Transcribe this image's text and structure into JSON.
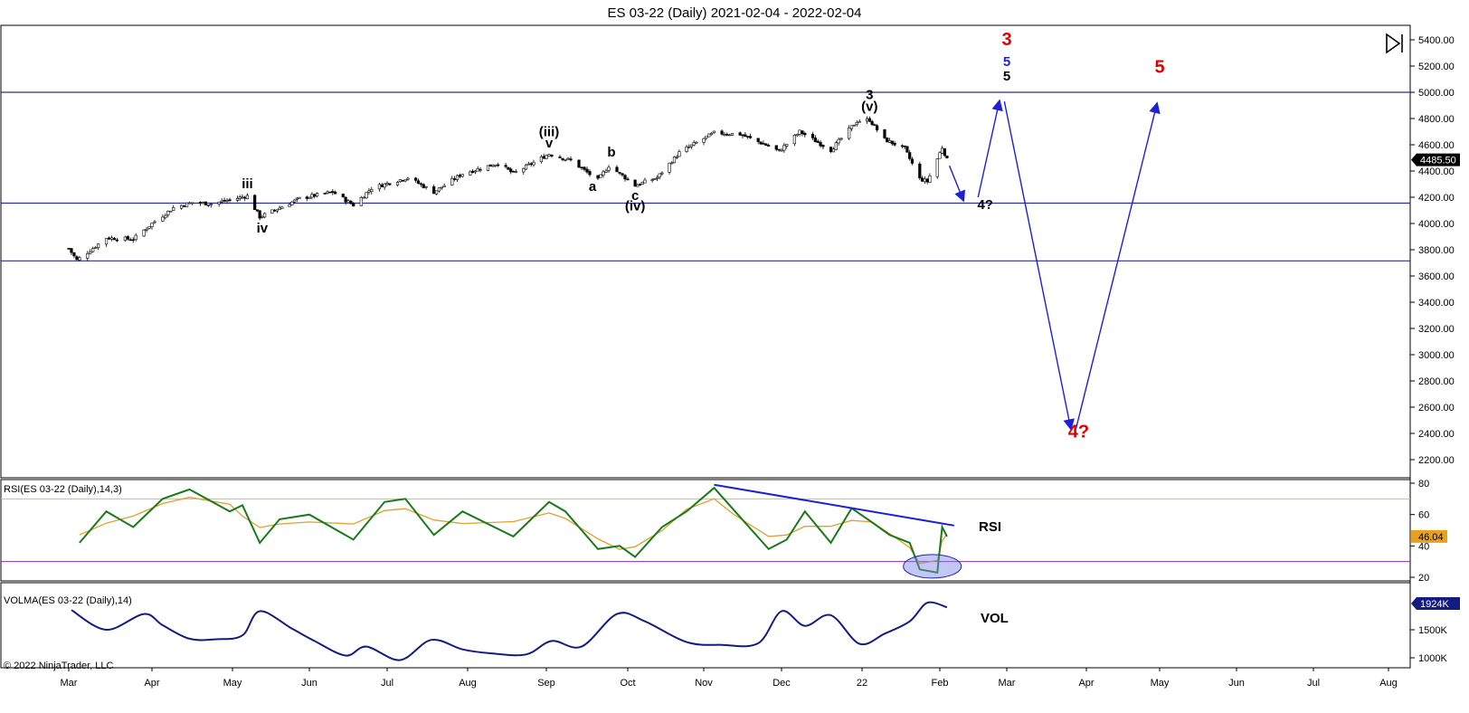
{
  "window": {
    "title": "ES 03-22 (Daily)  2021-02-04 - 2022-02-04"
  },
  "copyright": "© 2022 NinjaTrader, LLC",
  "chart_data": [
    {
      "type": "candlestick",
      "panel": "price",
      "y_ticks": [
        "5400.00",
        "5200.00",
        "5000.00",
        "4800.00",
        "4600.00",
        "4400.00",
        "4200.00",
        "4000.00",
        "3800.00",
        "3600.00",
        "3400.00",
        "3200.00",
        "3000.00",
        "2800.00",
        "2600.00",
        "2400.00",
        "2200.00"
      ],
      "ylim": [
        2100,
        5470
      ],
      "last_price": "4485.50",
      "x_month_labels": [
        "Mar",
        "Apr",
        "May",
        "Jun",
        "Jul",
        "Aug",
        "Sep",
        "Oct",
        "Nov",
        "Dec",
        "22",
        "Feb",
        "Mar",
        "Apr",
        "May",
        "Jun",
        "Jul",
        "Aug"
      ],
      "close_path": [
        [
          "2021-03-01",
          3810
        ],
        [
          "2021-03-04",
          3720
        ],
        [
          "2021-03-08",
          3780
        ],
        [
          "2021-03-15",
          3890
        ],
        [
          "2021-03-25",
          3880
        ],
        [
          "2021-04-01",
          4000
        ],
        [
          "2021-04-09",
          4120
        ],
        [
          "2021-04-16",
          4160
        ],
        [
          "2021-04-23",
          4150
        ],
        [
          "2021-05-07",
          4210
        ],
        [
          "2021-05-12",
          4050
        ],
        [
          "2021-05-19",
          4110
        ],
        [
          "2021-05-28",
          4190
        ],
        [
          "2021-06-10",
          4240
        ],
        [
          "2021-06-18",
          4140
        ],
        [
          "2021-06-25",
          4270
        ],
        [
          "2021-07-09",
          4350
        ],
        [
          "2021-07-19",
          4240
        ],
        [
          "2021-07-30",
          4380
        ],
        [
          "2021-08-13",
          4460
        ],
        [
          "2021-08-19",
          4380
        ],
        [
          "2021-09-02",
          4530
        ],
        [
          "2021-09-10",
          4480
        ],
        [
          "2021-09-20",
          4330
        ],
        [
          "2021-09-24",
          4440
        ],
        [
          "2021-10-04",
          4290
        ],
        [
          "2021-10-13",
          4350
        ],
        [
          "2021-10-22",
          4540
        ],
        [
          "2021-11-05",
          4690
        ],
        [
          "2021-11-15",
          4680
        ],
        [
          "2021-11-26",
          4590
        ],
        [
          "2021-11-30",
          4550
        ],
        [
          "2021-12-08",
          4700
        ],
        [
          "2021-12-20",
          4560
        ],
        [
          "2021-12-30",
          4780
        ],
        [
          "2022-01-04",
          4790
        ],
        [
          "2022-01-10",
          4640
        ],
        [
          "2022-01-18",
          4570
        ],
        [
          "2022-01-24",
          4340
        ],
        [
          "2022-01-27",
          4320
        ],
        [
          "2022-02-02",
          4580
        ],
        [
          "2022-02-04",
          4485
        ]
      ],
      "horizontal_lines": [
        5000,
        4155,
        3715
      ],
      "wave_labels": [
        {
          "text": "iii",
          "x": "2021-05-07",
          "y": 4270,
          "color": "#000000"
        },
        {
          "text": "iv",
          "x": "2021-05-13",
          "y": 3930,
          "color": "#000000"
        },
        {
          "text": "(iii)",
          "x": "2021-09-02",
          "y": 4665,
          "color": "#000000"
        },
        {
          "text": "v",
          "x": "2021-09-02",
          "y": 4580,
          "color": "#000000"
        },
        {
          "text": "a",
          "x": "2021-09-18",
          "y": 4250,
          "color": "#000000"
        },
        {
          "text": "b",
          "x": "2021-09-25",
          "y": 4510,
          "color": "#000000"
        },
        {
          "text": "c",
          "x": "2021-10-04",
          "y": 4180,
          "color": "#000000"
        },
        {
          "text": "(iv)",
          "x": "2021-10-04",
          "y": 4100,
          "color": "#000000"
        },
        {
          "text": "3",
          "x": "2022-01-04",
          "y": 4950,
          "color": "#000000"
        },
        {
          "text": "(v)",
          "x": "2022-01-04",
          "y": 4860,
          "color": "#000000"
        },
        {
          "text": "4?",
          "x": "2022-02-20",
          "y": 4110,
          "color": "#000000"
        },
        {
          "text": "3",
          "x": "2022-03-01",
          "y": 5360,
          "color": "#e00000"
        },
        {
          "text": "5",
          "x": "2022-03-01",
          "y": 5200,
          "color": "#1f1fd6"
        },
        {
          "text": "5",
          "x": "2022-03-01",
          "y": 5090,
          "color": "#000000"
        },
        {
          "text": "5",
          "x": "2022-05-01",
          "y": 5150,
          "color": "#e00000"
        },
        {
          "text": "4?",
          "x": "2022-03-29",
          "y": 2370,
          "color": "#e00000"
        }
      ],
      "projection_arrows": [
        [
          [
            "2022-02-05",
            4440
          ],
          [
            "2022-02-11",
            4170
          ]
        ],
        [
          [
            "2022-02-17",
            4200
          ],
          [
            "2022-02-26",
            4940
          ]
        ],
        [
          [
            "2022-02-28",
            4930
          ],
          [
            "2022-03-26",
            2430
          ]
        ],
        [
          [
            "2022-03-28",
            2440
          ],
          [
            "2022-04-30",
            4920
          ]
        ]
      ]
    },
    {
      "type": "line",
      "panel": "rsi",
      "title": "RSI(ES 03-22 (Daily),14,3)",
      "label": "RSI",
      "last_value": "46.04",
      "y_ticks": [
        "80",
        "60",
        "40",
        "20"
      ],
      "ylim": [
        17,
        81
      ],
      "levels": [
        70,
        30
      ],
      "series": [
        {
          "points": [
            [
              "2021-03-05",
              42
            ],
            [
              "2021-03-15",
              62
            ],
            [
              "2021-03-25",
              52
            ],
            [
              "2021-04-05",
              70
            ],
            [
              "2021-04-15",
              76
            ],
            [
              "2021-04-30",
              62
            ],
            [
              "2021-05-05",
              66
            ],
            [
              "2021-05-12",
              42
            ],
            [
              "2021-05-20",
              57
            ],
            [
              "2021-06-01",
              60
            ],
            [
              "2021-06-18",
              44
            ],
            [
              "2021-06-30",
              68
            ],
            [
              "2021-07-08",
              70
            ],
            [
              "2021-07-19",
              47
            ],
            [
              "2021-07-30",
              62
            ],
            [
              "2021-08-19",
              46
            ],
            [
              "2021-09-02",
              68
            ],
            [
              "2021-09-08",
              62
            ],
            [
              "2021-09-20",
              38
            ],
            [
              "2021-09-28",
              40
            ],
            [
              "2021-10-04",
              33
            ],
            [
              "2021-10-15",
              52
            ],
            [
              "2021-10-25",
              62
            ],
            [
              "2021-11-05",
              77
            ],
            [
              "2021-11-12",
              64
            ],
            [
              "2021-11-26",
              38
            ],
            [
              "2021-12-03",
              44
            ],
            [
              "2021-12-10",
              62
            ],
            [
              "2021-12-20",
              42
            ],
            [
              "2021-12-28",
              64
            ],
            [
              "2022-01-05",
              55
            ],
            [
              "2022-01-12",
              47
            ],
            [
              "2022-01-20",
              42
            ],
            [
              "2022-01-24",
              25
            ],
            [
              "2022-01-31",
              23
            ],
            [
              "2022-02-02",
              52
            ],
            [
              "2022-02-04",
              46
            ]
          ]
        }
      ],
      "trendline": [
        [
          "2021-11-05",
          79
        ],
        [
          "2022-02-07",
          53
        ]
      ]
    },
    {
      "type": "line",
      "panel": "volume",
      "title": "VOLMA(ES 03-22 (Daily),14)",
      "label": "VOL",
      "last_value": "1924K",
      "y_ticks": [
        "1500K",
        "1000K"
      ],
      "ylim": [
        870000,
        2000000
      ],
      "series": [
        {
          "points": [
            [
              "2021-03-02",
              1850000
            ],
            [
              "2021-03-15",
              1500000
            ],
            [
              "2021-03-29",
              1780000
            ],
            [
              "2021-04-05",
              1580000
            ],
            [
              "2021-04-15",
              1340000
            ],
            [
              "2021-04-25",
              1330000
            ],
            [
              "2021-05-05",
              1400000
            ],
            [
              "2021-05-12",
              1830000
            ],
            [
              "2021-05-25",
              1520000
            ],
            [
              "2021-06-03",
              1300000
            ],
            [
              "2021-06-15",
              1040000
            ],
            [
              "2021-06-23",
              1200000
            ],
            [
              "2021-07-06",
              960000
            ],
            [
              "2021-07-18",
              1320000
            ],
            [
              "2021-07-30",
              1150000
            ],
            [
              "2021-08-10",
              1080000
            ],
            [
              "2021-08-24",
              1060000
            ],
            [
              "2021-09-03",
              1300000
            ],
            [
              "2021-09-14",
              1200000
            ],
            [
              "2021-09-27",
              1780000
            ],
            [
              "2021-10-08",
              1650000
            ],
            [
              "2021-10-25",
              1280000
            ],
            [
              "2021-11-08",
              1230000
            ],
            [
              "2021-11-22",
              1260000
            ],
            [
              "2021-12-01",
              1830000
            ],
            [
              "2021-12-10",
              1570000
            ],
            [
              "2021-12-20",
              1760000
            ],
            [
              "2021-12-31",
              1250000
            ],
            [
              "2022-01-10",
              1430000
            ],
            [
              "2022-01-20",
              1650000
            ],
            [
              "2022-01-27",
              1980000
            ],
            [
              "2022-02-04",
              1900000
            ]
          ]
        }
      ]
    }
  ]
}
